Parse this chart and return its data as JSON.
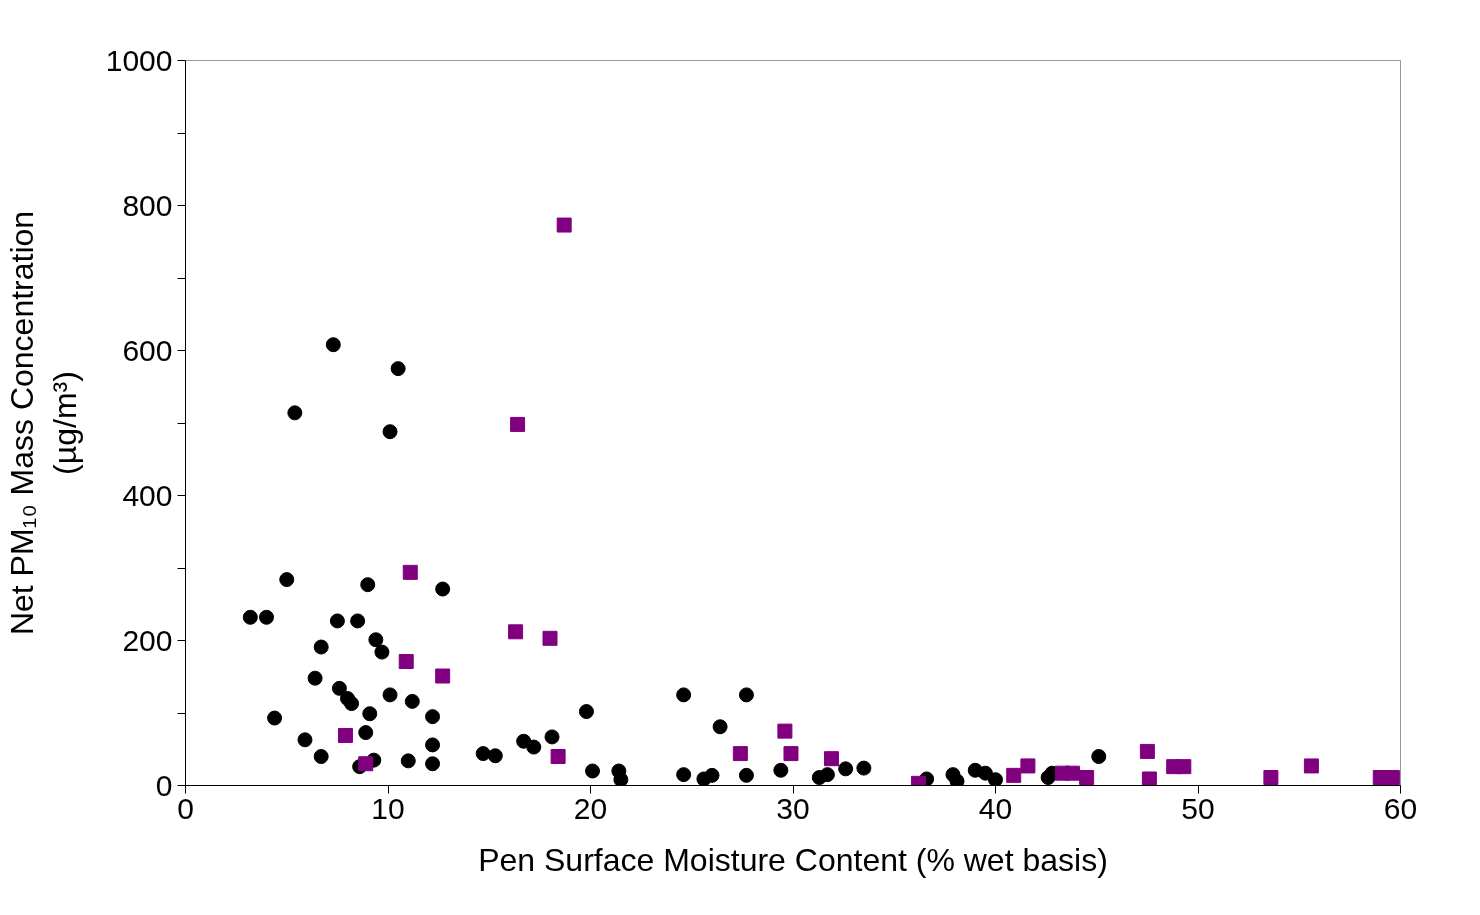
{
  "chart_data": {
    "type": "scatter",
    "xlabel": "Pen Surface Moisture Content (% wet basis)",
    "ylabel": "Net PM₁₀ Mass Concentration\n(µg/m³)",
    "xlim": [
      0,
      60
    ],
    "xticks": [
      0,
      10,
      20,
      30,
      40,
      50,
      60
    ],
    "ylim": [
      0,
      1000
    ],
    "yticks": [
      0,
      {
        "value": 100,
        "label": null
      },
      200,
      {
        "value": 300,
        "label": null
      },
      400,
      {
        "value": 500,
        "label": null
      },
      600,
      {
        "value": 700,
        "label": null
      },
      800,
      {
        "value": 900,
        "label": null
      },
      1000
    ],
    "grid": false,
    "series": [
      {
        "color": "#000000",
        "marker": "circle",
        "x": [
          3.2,
          4.0,
          5.0,
          5.4,
          7.3,
          10.5,
          10.1,
          4.4,
          5.9,
          6.4,
          6.7,
          6.7,
          7.5,
          8.5,
          9.0,
          9.4,
          9.7,
          7.6,
          8.0,
          8.2,
          9.1,
          8.9,
          9.3,
          8.6,
          10.1,
          11.2,
          12.2,
          12.2,
          12.2,
          11.0,
          12.7,
          14.7,
          15.3,
          16.7,
          17.2,
          18.1,
          19.8,
          20.1,
          21.4,
          21.5,
          24.6,
          24.6,
          25.6,
          26.0,
          26.4,
          27.7,
          27.7,
          29.4,
          31.3,
          31.7,
          32.6,
          33.5,
          36.6,
          37.9,
          38.1,
          39.0,
          39.5,
          40.0,
          42.6,
          42.8,
          45.1
        ],
        "values": [
          232,
          232,
          284,
          514,
          608,
          575,
          488,
          93,
          63,
          148,
          191,
          40,
          227,
          227,
          277,
          201,
          184,
          134,
          120,
          113,
          99,
          73,
          35,
          26,
          125,
          116,
          95,
          56,
          30,
          34,
          271,
          44,
          41,
          61,
          53,
          67,
          102,
          20,
          20,
          8,
          125,
          15,
          9,
          14,
          81,
          125,
          14,
          21,
          11,
          15,
          23,
          24,
          9,
          15,
          6,
          21,
          17,
          8,
          11,
          17,
          40
        ]
      },
      {
        "color": "#800080",
        "marker": "square",
        "x": [
          18.7,
          16.4,
          11.1,
          10.9,
          12.7,
          16.3,
          18.0,
          7.9,
          8.9,
          18.4,
          27.4,
          29.6,
          29.9,
          31.9,
          36.2,
          40.9,
          41.6,
          43.3,
          43.8,
          44.5,
          47.5,
          47.6,
          48.8,
          49.3,
          53.6,
          55.6,
          59.0,
          59.6
        ],
        "values": [
          773,
          498,
          294,
          171,
          151,
          212,
          203,
          69,
          30,
          40,
          44,
          75,
          44,
          37,
          3,
          14,
          27,
          17,
          17,
          11,
          47,
          9,
          26,
          26,
          11,
          27,
          11,
          11
        ]
      }
    ]
  }
}
